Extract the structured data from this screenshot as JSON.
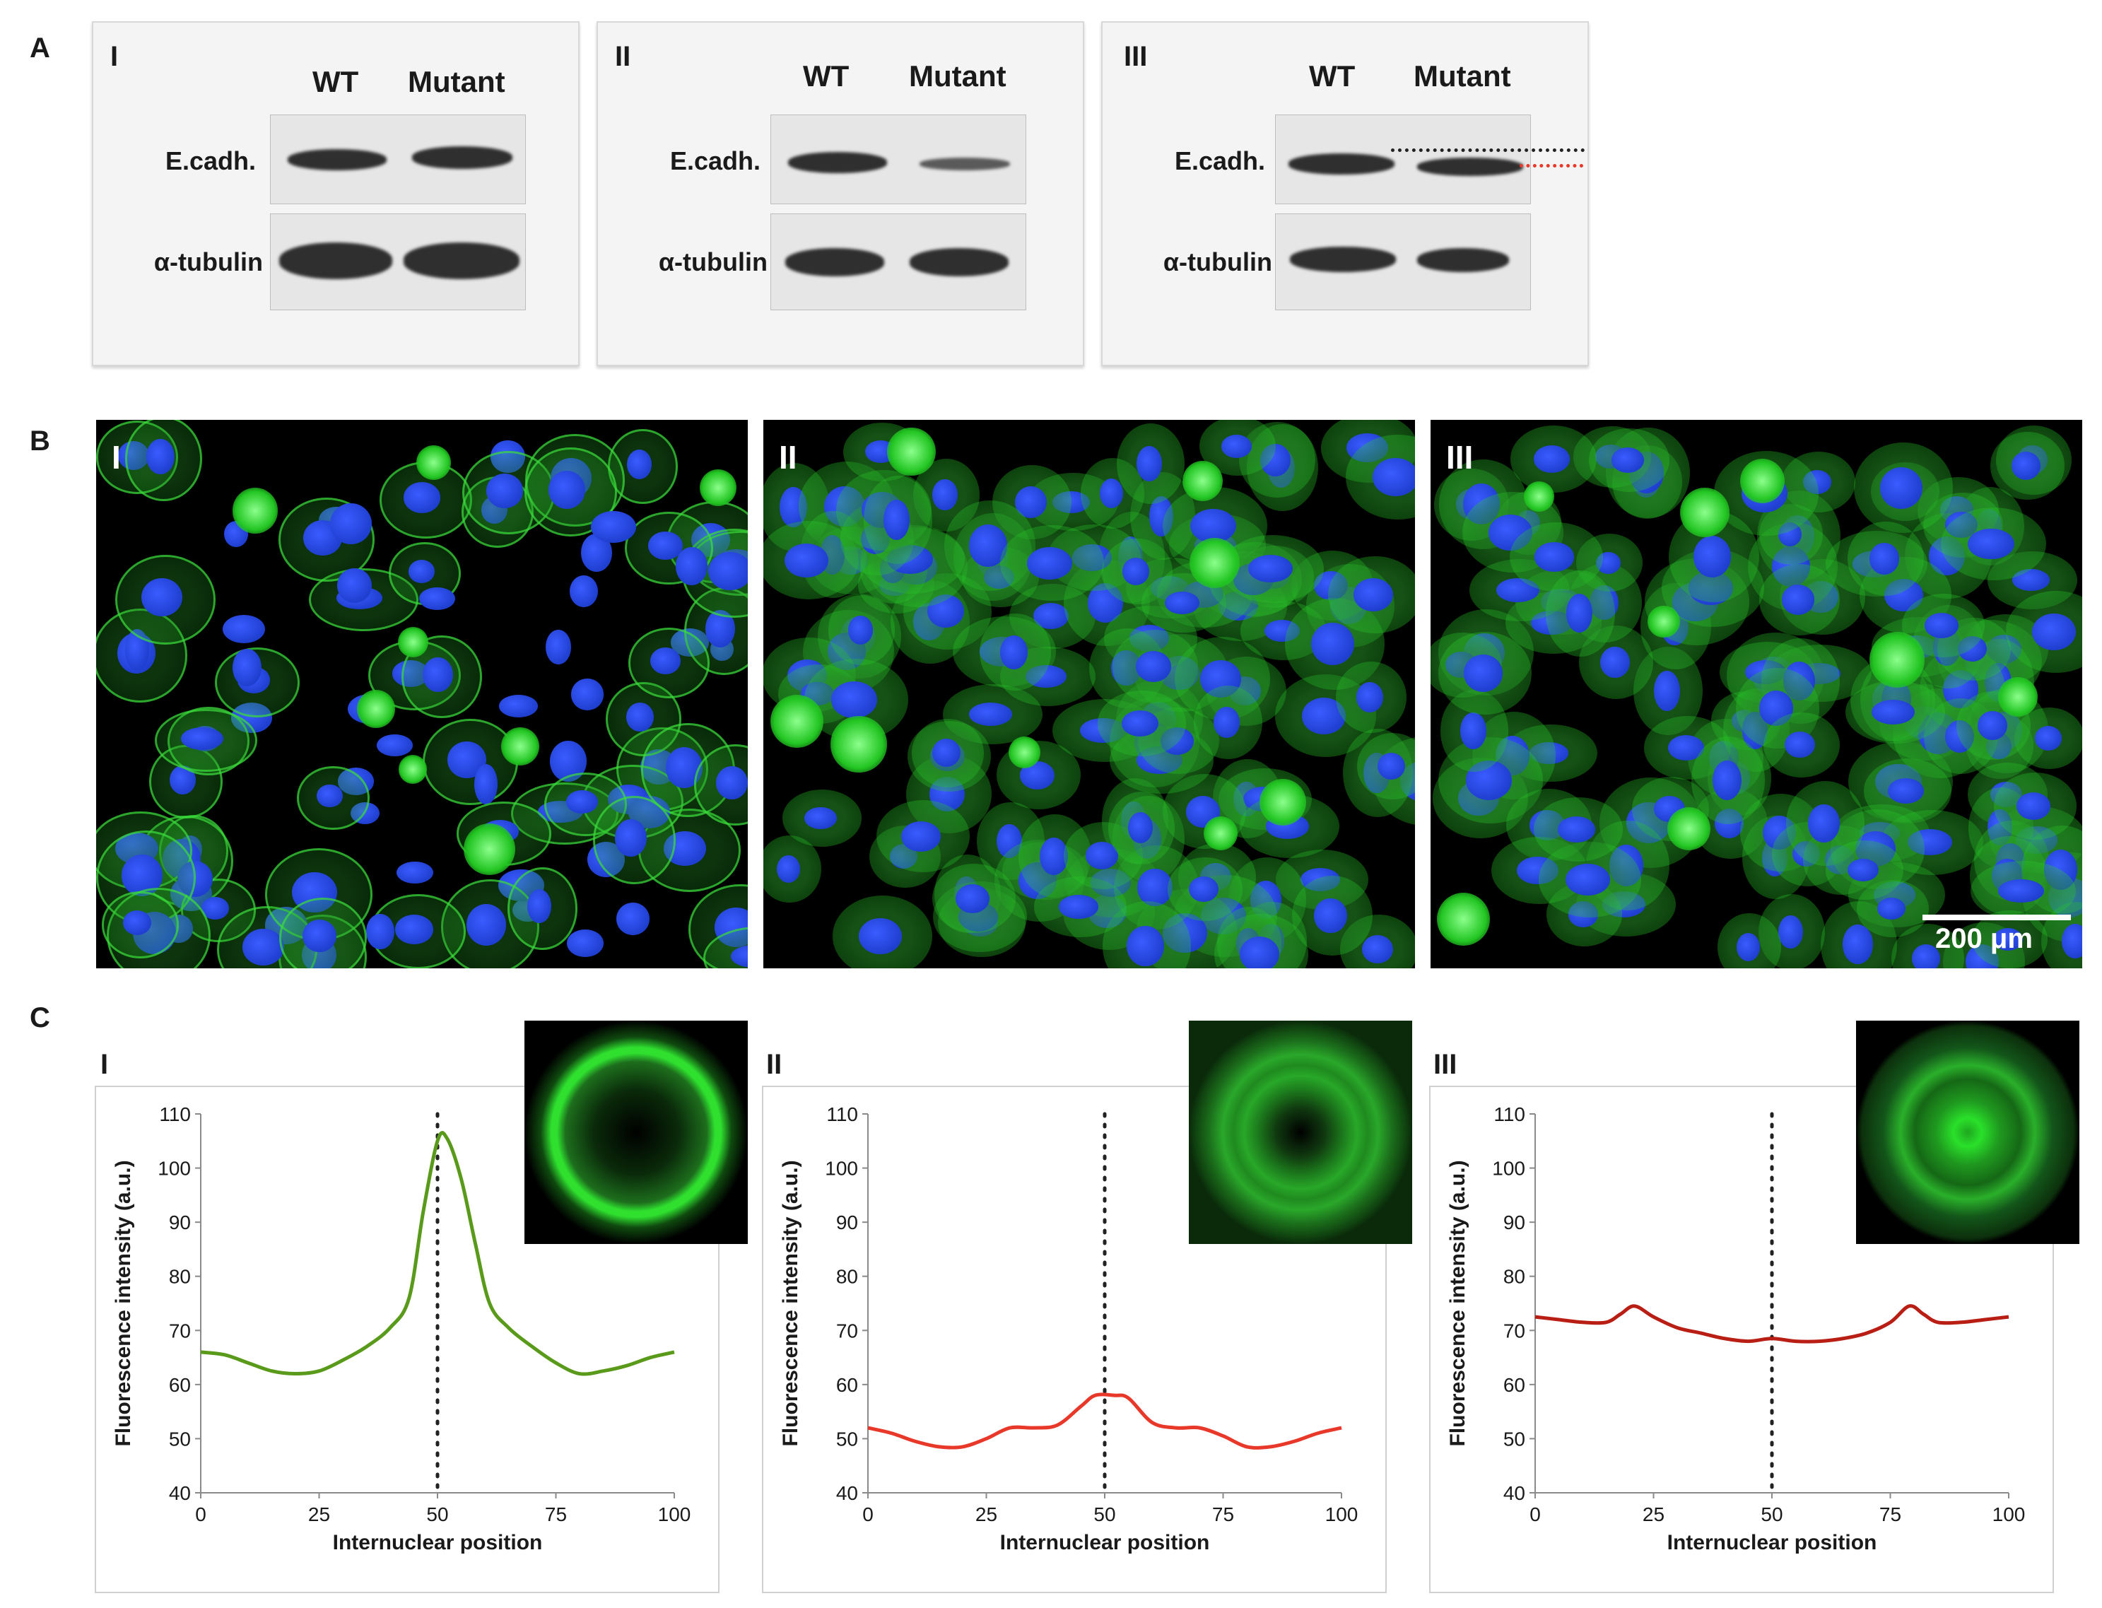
{
  "section_a": {
    "letter": "A",
    "panels": [
      {
        "roman": "I",
        "lane1": "WT",
        "lane2": "Mutant",
        "row1": "E.cadh.",
        "row2": "α-tubulin"
      },
      {
        "roman": "II",
        "lane1": "WT",
        "lane2": "Mutant",
        "row1": "E.cadh.",
        "row2": "α-tubulin"
      },
      {
        "roman": "III",
        "lane1": "WT",
        "lane2": "Mutant",
        "row1": "E.cadh.",
        "row2": "α-tubulin"
      }
    ]
  },
  "section_b": {
    "letter": "B",
    "panels": [
      {
        "roman": "I"
      },
      {
        "roman": "II"
      },
      {
        "roman": "III"
      }
    ],
    "scale_bar": "200 μm",
    "colors": {
      "membrane": "#22c522",
      "nucleus": "#1f3fd0"
    }
  },
  "section_c": {
    "letter": "C",
    "panels": [
      {
        "roman": "I"
      },
      {
        "roman": "II"
      },
      {
        "roman": "III"
      }
    ]
  },
  "chart_data": [
    {
      "type": "line",
      "panel": "I",
      "xlabel": "Internuclear position",
      "ylabel": "Fluorescence intensity (a.u.)",
      "xlim": [
        0,
        100
      ],
      "ylim": [
        40,
        110
      ],
      "xticks": [
        0,
        25,
        50,
        75,
        100
      ],
      "yticks": [
        40,
        50,
        60,
        70,
        80,
        90,
        100,
        110
      ],
      "reference_x": 50,
      "color": "#5a9a1a",
      "x": [
        0,
        5,
        10,
        15,
        20,
        25,
        30,
        35,
        40,
        44,
        47,
        50,
        52,
        55,
        58,
        61,
        65,
        70,
        75,
        80,
        85,
        90,
        95,
        100
      ],
      "y": [
        66,
        65.5,
        64,
        62.5,
        62,
        62.5,
        64.5,
        67,
        70.5,
        76,
        92,
        105,
        105.5,
        98,
        86,
        75,
        70.5,
        67,
        64,
        62,
        62.5,
        63.5,
        65,
        66
      ]
    },
    {
      "type": "line",
      "panel": "II",
      "xlabel": "Internuclear position",
      "ylabel": "Fluorescence intensity (a.u.)",
      "xlim": [
        0,
        100
      ],
      "ylim": [
        40,
        110
      ],
      "xticks": [
        0,
        25,
        50,
        75,
        100
      ],
      "yticks": [
        40,
        50,
        60,
        70,
        80,
        90,
        100,
        110
      ],
      "reference_x": 50,
      "color": "#e8382a",
      "x": [
        0,
        5,
        10,
        15,
        20,
        25,
        30,
        35,
        40,
        45,
        48,
        52,
        55,
        60,
        65,
        70,
        75,
        80,
        85,
        90,
        95,
        100
      ],
      "y": [
        52,
        51,
        49.5,
        48.5,
        48.5,
        50,
        52,
        52,
        52.5,
        56,
        58,
        58,
        57.5,
        53,
        52,
        52,
        50.5,
        48.5,
        48.5,
        49.5,
        51,
        52
      ]
    },
    {
      "type": "line",
      "panel": "III",
      "xlabel": "Internuclear position",
      "ylabel": "Fluorescence intensity (a.u.)",
      "xlim": [
        0,
        100
      ],
      "ylim": [
        40,
        110
      ],
      "xticks": [
        0,
        25,
        50,
        75,
        100
      ],
      "yticks": [
        40,
        50,
        60,
        70,
        80,
        90,
        100,
        110
      ],
      "reference_x": 50,
      "color": "#b81e14",
      "x": [
        0,
        5,
        10,
        15,
        18,
        21,
        25,
        30,
        35,
        40,
        45,
        50,
        55,
        60,
        65,
        70,
        75,
        79,
        82,
        85,
        90,
        95,
        100
      ],
      "y": [
        72.5,
        72,
        71.5,
        71.5,
        73,
        74.5,
        72.5,
        70.5,
        69.5,
        68.5,
        68,
        68.5,
        68,
        68,
        68.5,
        69.5,
        71.5,
        74.5,
        73,
        71.5,
        71.5,
        72,
        72.5
      ]
    }
  ]
}
